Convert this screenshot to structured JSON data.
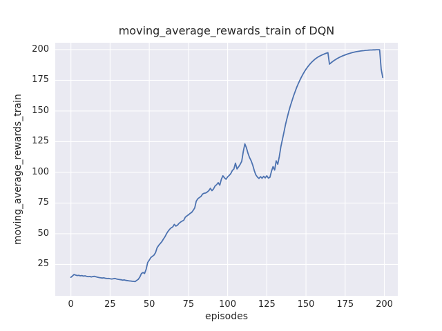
{
  "figure": {
    "title": "moving_average_rewards_train of DQN",
    "xlabel": "episodes",
    "ylabel": "moving_average_rewards_train"
  },
  "chart_data": {
    "type": "line",
    "title": "moving_average_rewards_train of DQN",
    "xlabel": "episodes",
    "ylabel": "moving_average_rewards_train",
    "x_ticks": [
      0,
      25,
      50,
      75,
      100,
      125,
      150,
      175,
      200
    ],
    "y_ticks": [
      25,
      50,
      75,
      100,
      125,
      150,
      175,
      200
    ],
    "xlim": [
      -10,
      208.6
    ],
    "ylim": [
      -0.6,
      205.6
    ],
    "grid": true,
    "legend": false,
    "line_color": "#4c72b0",
    "axes_background": "#eaeaf2",
    "grid_color": "#ffffff",
    "text_color": "#262626",
    "series": [
      {
        "name": "moving_average_rewards_train",
        "x_start": 0,
        "x_step": 1,
        "values": [
          14.5,
          15.6,
          16.8,
          16.3,
          15.9,
          16.1,
          15.7,
          15.9,
          15.5,
          15.7,
          15.3,
          15.0,
          15.2,
          14.8,
          15.1,
          15.3,
          14.9,
          14.6,
          14.3,
          14.1,
          13.9,
          14.1,
          13.7,
          13.5,
          13.6,
          13.3,
          13.1,
          13.3,
          13.6,
          13.2,
          12.9,
          12.7,
          12.5,
          12.2,
          12.4,
          12.0,
          11.8,
          11.6,
          11.5,
          11.3,
          11.2,
          11.0,
          12.0,
          12.9,
          14.8,
          17.6,
          18.4,
          17.6,
          21.0,
          26.6,
          28.5,
          30.6,
          31.6,
          32.6,
          34.6,
          38.6,
          40.5,
          42.0,
          43.5,
          45.6,
          47.5,
          50.0,
          52.0,
          53.6,
          54.8,
          55.6,
          57.6,
          56.2,
          57.0,
          58.5,
          59.5,
          60.3,
          61.0,
          63.5,
          64.5,
          65.4,
          66.5,
          67.3,
          69.0,
          71.0,
          76.6,
          78.5,
          79.5,
          80.4,
          82.3,
          83.0,
          83.2,
          84.0,
          85.1,
          87.0,
          85.1,
          86.5,
          88.9,
          90.0,
          91.6,
          89.6,
          94.4,
          97.2,
          95.5,
          94.4,
          96.3,
          97.5,
          99.0,
          101.5,
          102.8,
          107.5,
          102.8,
          104.5,
          106.5,
          109.0,
          117.0,
          123.2,
          120.0,
          115.5,
          112.0,
          109.5,
          106.0,
          101.5,
          98.0,
          96.2,
          95.0,
          96.5,
          95.2,
          96.8,
          95.5,
          97.2,
          95.3,
          96.0,
          101.0,
          104.7,
          101.9,
          109.4,
          106.6,
          113.0,
          121.0,
          127.0,
          133.0,
          139.3,
          144.5,
          149.5,
          154.0,
          158.0,
          162.0,
          165.5,
          169.0,
          172.0,
          174.8,
          177.4,
          179.8,
          182.0,
          184.0,
          185.8,
          187.4,
          188.9,
          190.2,
          191.4,
          192.5,
          193.4,
          194.2,
          194.9,
          195.5,
          196.1,
          196.6,
          197.1,
          197.5,
          188.2,
          189.3,
          190.3,
          191.2,
          192.0,
          192.8,
          193.5,
          194.1,
          194.7,
          195.2,
          195.7,
          196.2,
          196.6,
          197.0,
          197.4,
          197.7,
          198.0,
          198.3,
          198.5,
          198.7,
          198.9,
          199.1,
          199.2,
          199.4,
          199.5,
          199.6,
          199.7,
          199.7,
          199.8,
          199.8,
          199.9,
          199.9,
          199.9,
          184.0,
          177.3
        ]
      }
    ]
  }
}
